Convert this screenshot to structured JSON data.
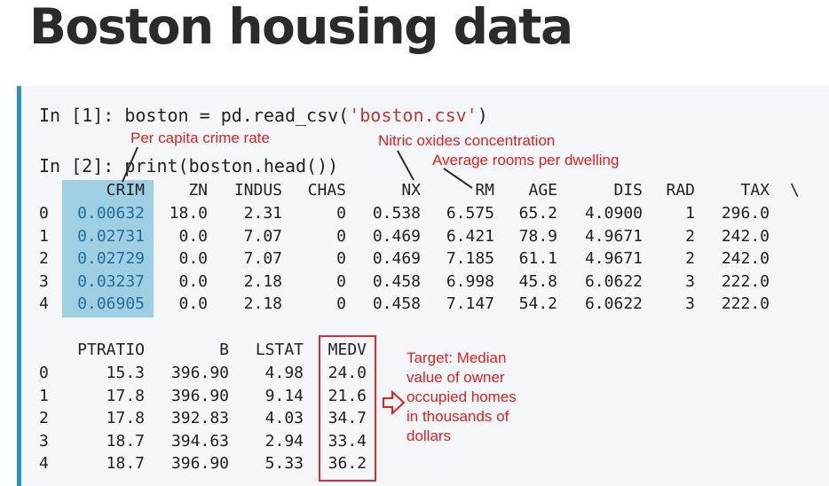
{
  "title": "Boston housing data",
  "cell1": {
    "prompt": "In [1]:",
    "code_pre": "boston = pd.read_csv(",
    "code_str": "'boston.csv'",
    "code_post": ")"
  },
  "cell2": {
    "prompt": "In [2]:",
    "code": "print(boston.head())"
  },
  "table1": {
    "columns": [
      "CRIM",
      "ZN",
      "INDUS",
      "CHAS",
      "NX",
      "RM",
      "AGE",
      "DIS",
      "RAD",
      "TAX"
    ],
    "continuation": "\\",
    "index": [
      "0",
      "1",
      "2",
      "3",
      "4"
    ],
    "rows": [
      [
        "0.00632",
        "18.0",
        "2.31",
        "0",
        "0.538",
        "6.575",
        "65.2",
        "4.0900",
        "1",
        "296.0"
      ],
      [
        "0.02731",
        "0.0",
        "7.07",
        "0",
        "0.469",
        "6.421",
        "78.9",
        "4.9671",
        "2",
        "242.0"
      ],
      [
        "0.02729",
        "0.0",
        "7.07",
        "0",
        "0.469",
        "7.185",
        "61.1",
        "4.9671",
        "2",
        "242.0"
      ],
      [
        "0.03237",
        "0.0",
        "2.18",
        "0",
        "0.458",
        "6.998",
        "45.8",
        "6.0622",
        "3",
        "222.0"
      ],
      [
        "0.06905",
        "0.0",
        "2.18",
        "0",
        "0.458",
        "7.147",
        "54.2",
        "6.0622",
        "3",
        "222.0"
      ]
    ]
  },
  "table2": {
    "columns": [
      "PTRATIO",
      "B",
      "LSTAT",
      "MEDV"
    ],
    "index": [
      "0",
      "1",
      "2",
      "3",
      "4"
    ],
    "rows": [
      [
        "15.3",
        "396.90",
        "4.98",
        "24.0"
      ],
      [
        "17.8",
        "396.90",
        "9.14",
        "21.6"
      ],
      [
        "17.8",
        "392.83",
        "4.03",
        "34.7"
      ],
      [
        "18.7",
        "394.63",
        "2.94",
        "33.4"
      ],
      [
        "18.7",
        "396.90",
        "5.33",
        "36.2"
      ]
    ]
  },
  "annotations": {
    "crim": "Per capita crime rate",
    "nx": "Nitric oxides concentration",
    "rm": "Average rooms per dwelling",
    "target_lines": [
      "Target: Median",
      "value of owner",
      "occupied homes",
      "in thousands of",
      "dollars"
    ]
  },
  "colors": {
    "accent": "#2f93c6",
    "annotation": "#e0211c",
    "highlight": "#9fcfe2"
  }
}
